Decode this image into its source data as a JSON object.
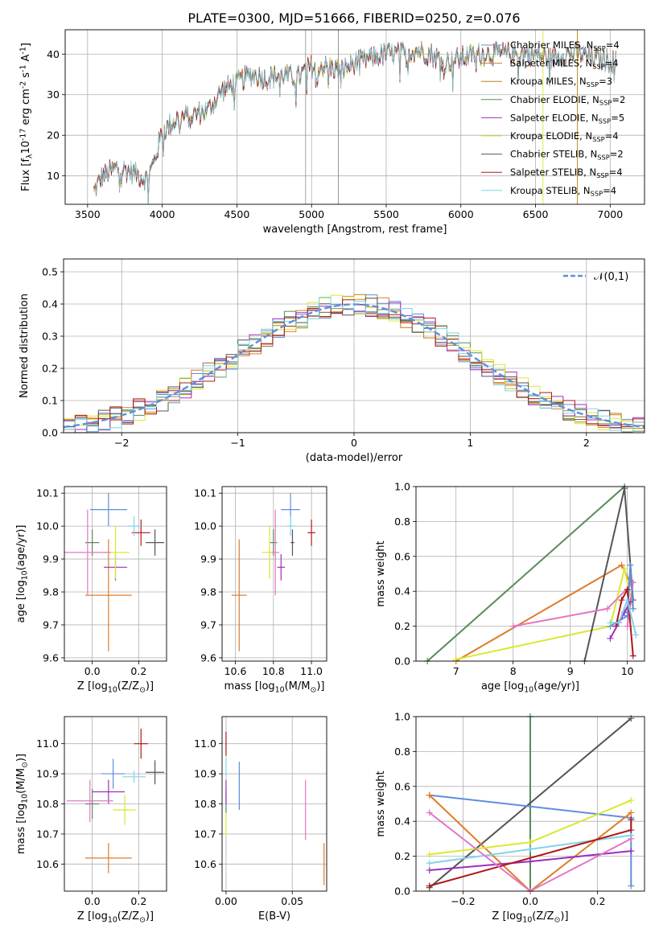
{
  "title": "PLATE=0300, MJD=51666, FIBERID=0250, z=0.076",
  "colors": {
    "Chabrier MILES": "#5d8fdc",
    "Salpeter MILES": "#e07b2a",
    "Kroupa MILES": "#b8860b",
    "Chabrier ELODIE": "#5b8a5b",
    "Salpeter ELODIE": "#9b30c0",
    "Kroupa ELODIE": "#d9e830",
    "Chabrier STELIB": "#555555",
    "Salpeter STELIB": "#b01818",
    "Kroupa STELIB": "#80d4e8",
    "pink": "#e377c2"
  },
  "chart_data": [
    {
      "type": "line",
      "xlabel": "wavelength [Angstrom, rest frame]",
      "ylabel": "Flux [f$_\\lambda$10$^{-17}$ erg cm$^{-2}$ s$^{-1}$ A$^{-1}$]",
      "xlim": [
        3350,
        7230
      ],
      "ylim": [
        3,
        46
      ],
      "xticks": [
        3500,
        4000,
        4500,
        5000,
        5500,
        6000,
        6500,
        7000
      ],
      "yticks": [
        10,
        20,
        30,
        40
      ],
      "grid": true,
      "legend_position": "top-right",
      "legend": [
        "Chabrier MILES, N$_{SSP}$=4",
        "Salpeter MILES, N$_{SSP}$=4",
        "Kroupa MILES, N$_{SSP}$=3",
        "Chabrier ELODIE, N$_{SSP}$=2",
        "Salpeter ELODIE, N$_{SSP}$=5",
        "Kroupa ELODIE, N$_{SSP}$=4",
        "Chabrier STELIB, N$_{SSP}$=2",
        "Salpeter STELIB, N$_{SSP}$=4",
        "Kroupa STELIB, N$_{SSP}$=4"
      ],
      "continuum": [
        [
          3540,
          6
        ],
        [
          3600,
          10
        ],
        [
          3700,
          12
        ],
        [
          3800,
          11
        ],
        [
          3900,
          9
        ],
        [
          3950,
          14
        ],
        [
          4000,
          21
        ],
        [
          4100,
          24
        ],
        [
          4200,
          25
        ],
        [
          4300,
          26
        ],
        [
          4400,
          31
        ],
        [
          4500,
          33
        ],
        [
          4600,
          35
        ],
        [
          4700,
          34
        ],
        [
          4800,
          35
        ],
        [
          4900,
          34
        ],
        [
          5000,
          37
        ],
        [
          5100,
          37
        ],
        [
          5200,
          36
        ],
        [
          5300,
          38
        ],
        [
          5400,
          39
        ],
        [
          5500,
          40
        ],
        [
          5600,
          40
        ],
        [
          5700,
          41
        ],
        [
          5800,
          40
        ],
        [
          5900,
          38
        ],
        [
          6000,
          39
        ],
        [
          6100,
          40
        ],
        [
          6200,
          40
        ],
        [
          6300,
          40
        ],
        [
          6400,
          40
        ],
        [
          6500,
          40
        ],
        [
          6600,
          39
        ],
        [
          6700,
          40
        ],
        [
          6800,
          40
        ],
        [
          6900,
          39
        ],
        [
          7040,
          38
        ]
      ]
    },
    {
      "type": "histogram",
      "xlabel": "(data-model)/error",
      "ylabel": "Normed distribution",
      "xlim": [
        -2.5,
        2.5
      ],
      "ylim": [
        0,
        0.54
      ],
      "xticks": [
        -2,
        -1,
        0,
        1,
        2
      ],
      "yticks": [
        0.0,
        0.1,
        0.2,
        0.3,
        0.4,
        0.5
      ],
      "grid": true,
      "bin_width": 0.1,
      "legend": [
        "$\\mathcal{N}(0,1)$"
      ],
      "legend_position": "top-right",
      "gaussian": {
        "mu": 0,
        "sigma": 1
      }
    },
    {
      "type": "scatter",
      "xlabel": "Z [log$_{10}$(Z/Z$_\\odot$)]",
      "ylabel": "age  [log$_{10}$(age/yr)]",
      "xlim": [
        -0.12,
        0.32
      ],
      "ylim": [
        9.59,
        10.12
      ],
      "xticks": [
        0.0,
        0.2
      ],
      "yticks": [
        9.6,
        9.7,
        9.8,
        9.9,
        10.0,
        10.1
      ],
      "grid": true,
      "points": [
        {
          "x": 0.07,
          "y": 10.05,
          "xerr": 0.08,
          "yerr": 0.05,
          "color": "#5d8fdc"
        },
        {
          "x": 0.07,
          "y": 9.79,
          "xerr": 0.1,
          "yerr": 0.17,
          "color": "#e07b2a"
        },
        {
          "x": 0.0,
          "y": 9.95,
          "xerr": 0.03,
          "yerr": 0.04,
          "color": "#5b8a5b"
        },
        {
          "x": 0.1,
          "y": 9.875,
          "xerr": 0.05,
          "yerr": 0.04,
          "color": "#9b30c0"
        },
        {
          "x": 0.1,
          "y": 9.92,
          "xerr": 0.06,
          "yerr": 0.08,
          "color": "#d9e830"
        },
        {
          "x": 0.27,
          "y": 9.95,
          "xerr": 0.04,
          "yerr": 0.04,
          "color": "#555555"
        },
        {
          "x": 0.21,
          "y": 9.98,
          "xerr": 0.04,
          "yerr": 0.04,
          "color": "#b01818"
        },
        {
          "x": 0.18,
          "y": 10.0,
          "xerr": 0.03,
          "yerr": 0.03,
          "color": "#80d4e8"
        },
        {
          "x": -0.02,
          "y": 9.92,
          "xerr": 0.1,
          "yerr": 0.13,
          "color": "#e377c2"
        }
      ]
    },
    {
      "type": "scatter",
      "xlabel": "mass [log$_{10}$(M/M$_\\odot$)]",
      "ylabel": "",
      "xlim": [
        10.53,
        11.08
      ],
      "ylim": [
        9.59,
        10.12
      ],
      "xticks": [
        10.6,
        10.8,
        11.0
      ],
      "yticks": [
        9.6,
        9.7,
        9.8,
        9.9,
        10.0,
        10.1
      ],
      "grid": true,
      "points": [
        {
          "x": 10.89,
          "y": 10.05,
          "xerr": 0.05,
          "yerr": 0.05,
          "color": "#5d8fdc"
        },
        {
          "x": 10.62,
          "y": 9.79,
          "xerr": 0.04,
          "yerr": 0.17,
          "color": "#e07b2a"
        },
        {
          "x": 10.8,
          "y": 9.95,
          "xerr": 0.02,
          "yerr": 0.04,
          "color": "#5b8a5b"
        },
        {
          "x": 10.84,
          "y": 9.875,
          "xerr": 0.02,
          "yerr": 0.04,
          "color": "#9b30c0"
        },
        {
          "x": 10.78,
          "y": 9.92,
          "xerr": 0.04,
          "yerr": 0.08,
          "color": "#d9e830"
        },
        {
          "x": 10.9,
          "y": 9.95,
          "xerr": 0.01,
          "yerr": 0.04,
          "color": "#555555"
        },
        {
          "x": 11.0,
          "y": 9.98,
          "xerr": 0.02,
          "yerr": 0.04,
          "color": "#b01818"
        },
        {
          "x": 10.89,
          "y": 10.0,
          "xerr": 0.02,
          "yerr": 0.03,
          "color": "#80d4e8"
        },
        {
          "x": 10.81,
          "y": 9.92,
          "xerr": 0.02,
          "yerr": 0.13,
          "color": "#e377c2"
        }
      ]
    },
    {
      "type": "line",
      "xlabel": "age  [log$_{10}$(age/yr)]",
      "ylabel": "mass weight",
      "xlim": [
        6.3,
        10.3
      ],
      "ylim": [
        0,
        1
      ],
      "xticks": [
        7,
        8,
        9,
        10
      ],
      "yticks": [
        0.0,
        0.2,
        0.4,
        0.6,
        0.8,
        1.0
      ],
      "grid": true,
      "series": [
        {
          "color": "#5b8a5b",
          "points": [
            [
              6.5,
              0.0
            ],
            [
              9.95,
              1.0
            ]
          ]
        },
        {
          "color": "#e07b2a",
          "points": [
            [
              7.0,
              0.0
            ],
            [
              9.9,
              0.55
            ],
            [
              10.05,
              0.45
            ]
          ]
        },
        {
          "color": "#d9e830",
          "points": [
            [
              7.0,
              0.01
            ],
            [
              9.7,
              0.2
            ],
            [
              9.95,
              0.53
            ],
            [
              10.1,
              0.3
            ]
          ]
        },
        {
          "color": "#555555",
          "points": [
            [
              9.25,
              0.0
            ],
            [
              9.95,
              0.99
            ],
            [
              10.1,
              0.35
            ]
          ]
        },
        {
          "color": "#e377c2",
          "points": [
            [
              8.0,
              0.2
            ],
            [
              9.65,
              0.3
            ],
            [
              10.1,
              0.45
            ],
            [
              10.0,
              0.2
            ]
          ]
        },
        {
          "color": "#5d8fdc",
          "points": [
            [
              9.7,
              0.2
            ],
            [
              10.0,
              0.26
            ],
            [
              10.05,
              0.55
            ],
            [
              10.1,
              0.3
            ]
          ]
        },
        {
          "color": "#b01818",
          "points": [
            [
              9.8,
              0.2
            ],
            [
              9.9,
              0.35
            ],
            [
              10.0,
              0.41
            ],
            [
              10.1,
              0.03
            ]
          ]
        },
        {
          "color": "#9b30c0",
          "points": [
            [
              9.7,
              0.13
            ],
            [
              9.85,
              0.22
            ],
            [
              9.95,
              0.28
            ],
            [
              10.05,
              0.34
            ]
          ]
        },
        {
          "color": "#80d4e8",
          "points": [
            [
              9.7,
              0.22
            ],
            [
              9.85,
              0.22
            ],
            [
              10.0,
              0.35
            ],
            [
              10.15,
              0.15
            ]
          ]
        }
      ]
    },
    {
      "type": "scatter",
      "xlabel": "Z [log$_{10}$(Z/Z$_\\odot$)]",
      "ylabel": "mass [log$_{10}$(M/M$_\\odot$)]",
      "xlim": [
        -0.12,
        0.32
      ],
      "ylim": [
        10.51,
        11.09
      ],
      "xticks": [
        0.0,
        0.2
      ],
      "yticks": [
        10.6,
        10.7,
        10.8,
        10.9,
        11.0
      ],
      "grid": true,
      "points": [
        {
          "x": 0.09,
          "y": 10.9,
          "xerr": 0.05,
          "yerr": 0.05,
          "color": "#5d8fdc"
        },
        {
          "x": 0.07,
          "y": 10.62,
          "xerr": 0.1,
          "yerr": 0.05,
          "color": "#e07b2a"
        },
        {
          "x": 0.0,
          "y": 10.8,
          "xerr": 0.03,
          "yerr": 0.05,
          "color": "#5b8a5b"
        },
        {
          "x": 0.07,
          "y": 10.84,
          "xerr": 0.07,
          "yerr": 0.04,
          "color": "#9b30c0"
        },
        {
          "x": 0.14,
          "y": 10.78,
          "xerr": 0.05,
          "yerr": 0.05,
          "color": "#d9e830"
        },
        {
          "x": 0.27,
          "y": 10.905,
          "xerr": 0.04,
          "yerr": 0.04,
          "color": "#555555"
        },
        {
          "x": 0.21,
          "y": 11.0,
          "xerr": 0.03,
          "yerr": 0.05,
          "color": "#b01818"
        },
        {
          "x": 0.18,
          "y": 10.89,
          "xerr": 0.05,
          "yerr": 0.02,
          "color": "#80d4e8"
        },
        {
          "x": -0.01,
          "y": 10.81,
          "xerr": 0.1,
          "yerr": 0.07,
          "color": "#e377c2"
        }
      ]
    },
    {
      "type": "scatter",
      "xlabel": "E(B-V)",
      "ylabel": "",
      "xlim": [
        -0.003,
        0.076
      ],
      "ylim": [
        10.51,
        11.09
      ],
      "xticks": [
        0.0,
        0.05
      ],
      "yticks": [
        10.6,
        10.7,
        10.8,
        10.9,
        11.0
      ],
      "grid": true,
      "points": [
        {
          "x": 0.01,
          "y": 10.86,
          "xerr": 0.0,
          "yerr": 0.08,
          "color": "#5d8fdc"
        },
        {
          "x": 0.074,
          "y": 10.6,
          "xerr": 0.0,
          "yerr": 0.07,
          "color": "#e07b2a"
        },
        {
          "x": 0.0,
          "y": 10.81,
          "xerr": 0.0,
          "yerr": 0.04,
          "color": "#5b8a5b"
        },
        {
          "x": 0.0,
          "y": 10.84,
          "xerr": 0.0,
          "yerr": 0.04,
          "color": "#9b30c0"
        },
        {
          "x": 0.0,
          "y": 10.73,
          "xerr": 0.0,
          "yerr": 0.04,
          "color": "#d9e830"
        },
        {
          "x": 0.0,
          "y": 11.0,
          "xerr": 0.0,
          "yerr": 0.04,
          "color": "#b01818"
        },
        {
          "x": 0.0,
          "y": 10.92,
          "xerr": 0.0,
          "yerr": 0.03,
          "color": "#80d4e8"
        },
        {
          "x": 0.06,
          "y": 10.78,
          "xerr": 0.0,
          "yerr": 0.1,
          "color": "#e377c2"
        }
      ]
    },
    {
      "type": "line",
      "xlabel": "Z [log$_{10}$(Z/Z$_\\odot$)]",
      "ylabel": "mass weight",
      "xlim": [
        -0.34,
        0.34
      ],
      "ylim": [
        0,
        1
      ],
      "xticks": [
        -0.2,
        0.0,
        0.2
      ],
      "yticks": [
        0.0,
        0.2,
        0.4,
        0.6,
        0.8,
        1.0
      ],
      "grid": true,
      "series": [
        {
          "color": "#5b8a5b",
          "points": [
            [
              0.0,
              1.0
            ],
            [
              0.0,
              0.0
            ]
          ]
        },
        {
          "color": "#555555",
          "points": [
            [
              -0.3,
              0.02
            ],
            [
              0.3,
              0.99
            ]
          ]
        },
        {
          "color": "#5d8fdc",
          "points": [
            [
              -0.3,
              0.55
            ],
            [
              0.3,
              0.42
            ],
            [
              0.3,
              0.03
            ]
          ]
        },
        {
          "color": "#e07b2a",
          "points": [
            [
              -0.3,
              0.55
            ],
            [
              0.0,
              0.0
            ],
            [
              0.3,
              0.45
            ]
          ]
        },
        {
          "color": "#d9e830",
          "points": [
            [
              -0.3,
              0.21
            ],
            [
              0.0,
              0.28
            ],
            [
              0.3,
              0.52
            ]
          ]
        },
        {
          "color": "#80d4e8",
          "points": [
            [
              -0.3,
              0.16
            ],
            [
              0.0,
              0.24
            ],
            [
              0.3,
              0.32
            ]
          ]
        },
        {
          "color": "#9b30c0",
          "points": [
            [
              -0.3,
              0.12
            ],
            [
              0.0,
              0.17
            ],
            [
              0.3,
              0.23
            ]
          ]
        },
        {
          "color": "#b01818",
          "points": [
            [
              -0.3,
              0.03
            ],
            [
              0.3,
              0.35
            ],
            [
              0.3,
              0.41
            ]
          ]
        },
        {
          "color": "#e377c2",
          "points": [
            [
              -0.3,
              0.45
            ],
            [
              0.0,
              0.0
            ],
            [
              0.3,
              0.3
            ]
          ]
        }
      ]
    }
  ]
}
